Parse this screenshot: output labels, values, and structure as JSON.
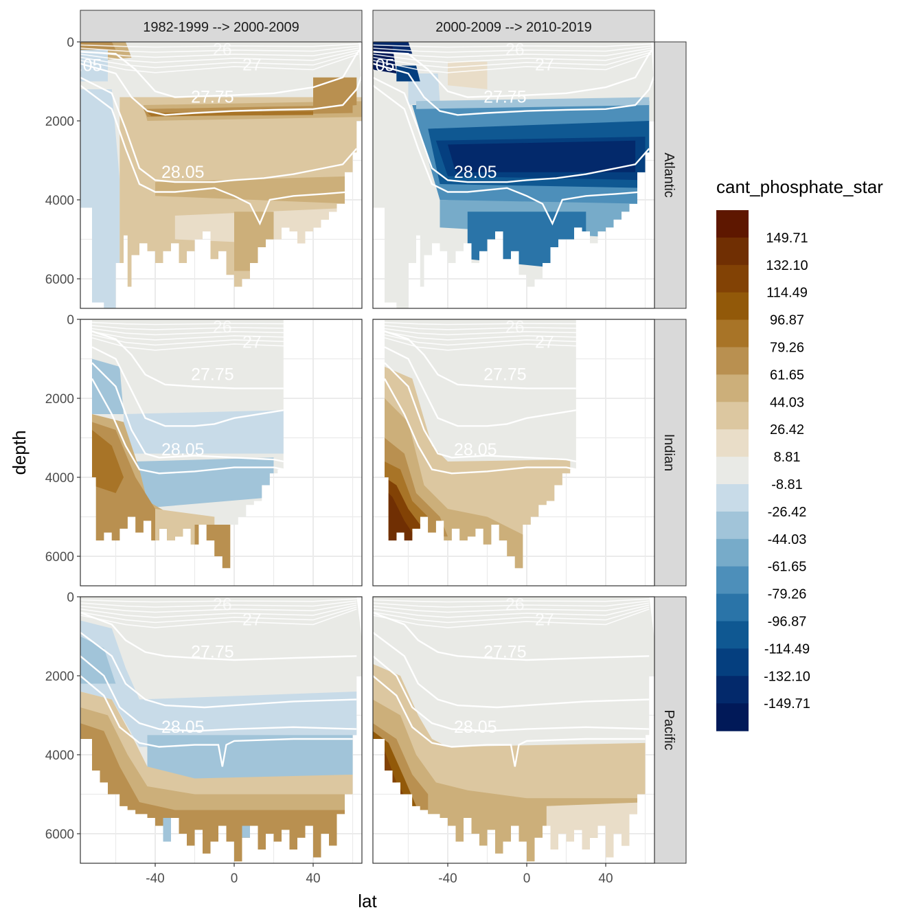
{
  "chart_data": {
    "type": "heatmap",
    "subtype": "faceted filled contour sections (latitude vs depth) with white isopycnal contours",
    "xlabel": "lat",
    "ylabel": "depth",
    "xlim": [
      -78,
      65
    ],
    "ylim": [
      0,
      6800
    ],
    "y_reversed": true,
    "x_ticks": [
      -40,
      0,
      40
    ],
    "x_tick_labels": [
      "-40",
      "0",
      "40"
    ],
    "y_ticks": [
      0,
      2000,
      4000,
      6000
    ],
    "y_tick_labels": [
      "0",
      "2000",
      "4000",
      "6000"
    ],
    "grid": true,
    "columns": [
      "1982-1999 --> 2000-2009",
      "2000-2009 --> 2010-2019"
    ],
    "rows": [
      "Atlantic",
      "Indian",
      "Pacific"
    ],
    "legend": {
      "title": "cant_phosphate_star",
      "placement": "right",
      "labels": [
        "149.71",
        "132.10",
        "114.49",
        "96.87",
        "79.26",
        "61.65",
        "44.03",
        "26.42",
        "8.81",
        "-8.81",
        "-26.42",
        "-44.03",
        "-61.65",
        "-79.26",
        "-96.87",
        "-114.49",
        "-132.10",
        "-149.71"
      ],
      "colors": [
        "#5e1700",
        "#702f03",
        "#824205",
        "#925909",
        "#a87427",
        "#b99050",
        "#ccaf7a",
        "#dcc7a0",
        "#e9ddc8",
        "#e9eae6",
        "#c8dbe8",
        "#a1c4d9",
        "#77abc9",
        "#4d8fba",
        "#2a74a8",
        "#0f5892",
        "#053f7f",
        "#03296b",
        "#011958"
      ]
    },
    "contour_labels": [
      "27.75",
      "28.05"
    ],
    "contour_labels_partial": [
      "27",
      "26"
    ],
    "atlantic_partial_labels": [
      ".05",
      ".05"
    ],
    "bands_by_panel": {
      "note": "value bins (legend color index 0=highest) by latitude band, shallow to deep",
      "r0c0": [
        [
          -78,
          -60,
          "ice-blue"
        ],
        [
          -60,
          -30,
          "lower-tan"
        ],
        [
          -30,
          0,
          "mid-tan"
        ],
        [
          0,
          60,
          "upper-brown"
        ]
      ],
      "r0c1": [
        [
          -78,
          -60,
          "very-dark-blue"
        ],
        [
          -60,
          -40,
          "pale-grey"
        ],
        [
          -40,
          62,
          "dark-blue"
        ]
      ],
      "r1c0": [
        [
          -78,
          -40,
          "dark-tan"
        ],
        [
          -40,
          0,
          "light-blue"
        ],
        [
          0,
          22,
          "pale-grey"
        ]
      ],
      "r1c1": [
        [
          -78,
          -40,
          "dark-brown"
        ],
        [
          -40,
          0,
          "light-tan"
        ],
        [
          0,
          22,
          "pale-grey"
        ]
      ],
      "r2c0": [
        [
          -78,
          -40,
          "tan"
        ],
        [
          -40,
          60,
          "light-blue"
        ]
      ],
      "r2c1": [
        [
          -78,
          -40,
          "dark-brown"
        ],
        [
          -40,
          60,
          "light-tan"
        ]
      ]
    }
  }
}
